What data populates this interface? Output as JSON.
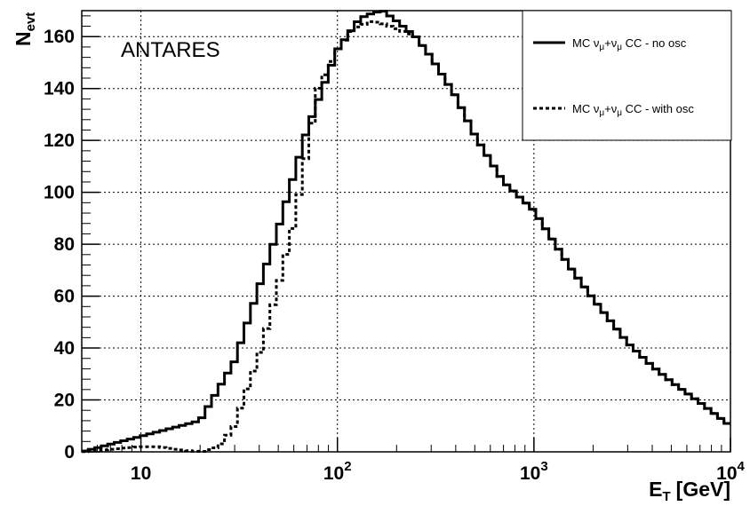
{
  "chart_data": {
    "type": "line",
    "step": true,
    "x_scale": "log",
    "xlim": [
      5,
      10000
    ],
    "ylim": [
      0,
      170
    ],
    "grid": true,
    "legend_position": "top-right",
    "ylabel": "N",
    "ylabel_sub": "evt",
    "xlabel": "E",
    "xlabel_sub": "T",
    "xlabel_unit": "[GeV]",
    "yticks": [
      0,
      20,
      40,
      60,
      80,
      100,
      120,
      140,
      160
    ],
    "xticks": [
      {
        "value": 10,
        "base": "10",
        "exp": ""
      },
      {
        "value": 100,
        "base": "10",
        "exp": "2"
      },
      {
        "value": 1000,
        "base": "10",
        "exp": "3"
      },
      {
        "value": 10000,
        "base": "10",
        "exp": "4"
      }
    ],
    "annotation": "ANTARES",
    "legend": [
      {
        "series_index": 0,
        "pre": "MC ν",
        "sub1": "μ",
        "mid": "+ν",
        "sub2": "μ",
        "post": " CC - no osc"
      },
      {
        "series_index": 1,
        "pre": "MC ν",
        "sub1": "μ",
        "mid": "+ν",
        "sub2": "μ",
        "post": " CC - with osc"
      }
    ],
    "series": [
      {
        "style": "solid",
        "x": [
          5,
          20,
          30,
          50,
          70,
          100,
          130,
          150,
          170,
          200,
          250,
          300,
          400,
          500,
          700,
          1000,
          1500,
          2000,
          3000,
          4000,
          5000,
          7000,
          10000
        ],
        "y": [
          0,
          12,
          35,
          86,
          124,
          155,
          167,
          169,
          170,
          166,
          160,
          152,
          137,
          122,
          104,
          93,
          72,
          59,
          42,
          33,
          27,
          19,
          10
        ]
      },
      {
        "style": "dotted",
        "x": [
          5,
          10,
          12,
          15,
          20,
          25,
          30,
          35,
          40,
          50,
          60,
          70,
          80,
          90,
          100,
          120,
          150,
          170,
          200,
          250,
          300,
          400,
          500,
          700,
          1000,
          1500,
          2000,
          3000,
          4000,
          5000,
          7000,
          10000
        ],
        "y": [
          0,
          2,
          2,
          1,
          0,
          2,
          10,
          25,
          37,
          64,
          88,
          116,
          140,
          148,
          155,
          163,
          166,
          165,
          163,
          160,
          152,
          137,
          122,
          104,
          93,
          72,
          59,
          42,
          33,
          27,
          19,
          10
        ]
      }
    ]
  }
}
